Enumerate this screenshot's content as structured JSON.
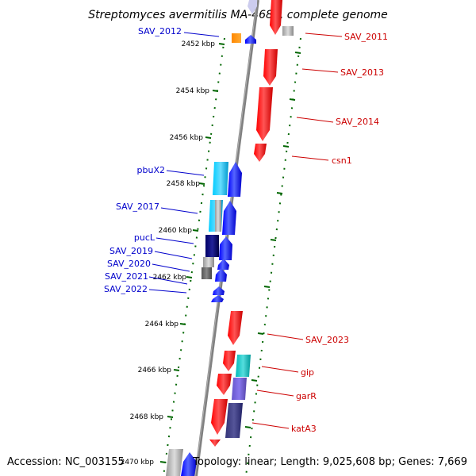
{
  "title": "Streptomyces avermitilis MA-4680, complete genome",
  "footer": {
    "accession": "Accession: NC_003155",
    "summary": "Topology: linear; Length: 9,025,608 bp; Genes: 7,669"
  },
  "colors": {
    "forward_gene": "#0000ff",
    "reverse_gene": "#ff0000",
    "left_label": "#0000cc",
    "right_label": "#cc0000",
    "tick": "#006600",
    "backbone": "#808080"
  },
  "scale": {
    "unit": "kbp",
    "ticks": [
      {
        "label": "2452 kbp"
      },
      {
        "label": "2454 kbp"
      },
      {
        "label": "2456 kbp"
      },
      {
        "label": "2458 kbp"
      },
      {
        "label": "2460 kbp"
      },
      {
        "label": "2462 kbp"
      },
      {
        "label": "2464 kbp"
      },
      {
        "label": "2466 kbp"
      },
      {
        "label": "2468 kbp"
      },
      {
        "label": "2470 kbp"
      }
    ]
  },
  "labels": {
    "left": [
      "SAV_2012",
      "pbuX2",
      "SAV_2017",
      "pucL",
      "SAV_2019",
      "SAV_2020",
      "SAV_2021",
      "SAV_2022"
    ],
    "right": [
      "SAV_2011",
      "SAV_2013",
      "SAV_2014",
      "csn1",
      "SAV_2023",
      "gip",
      "garR",
      "katA3"
    ]
  }
}
